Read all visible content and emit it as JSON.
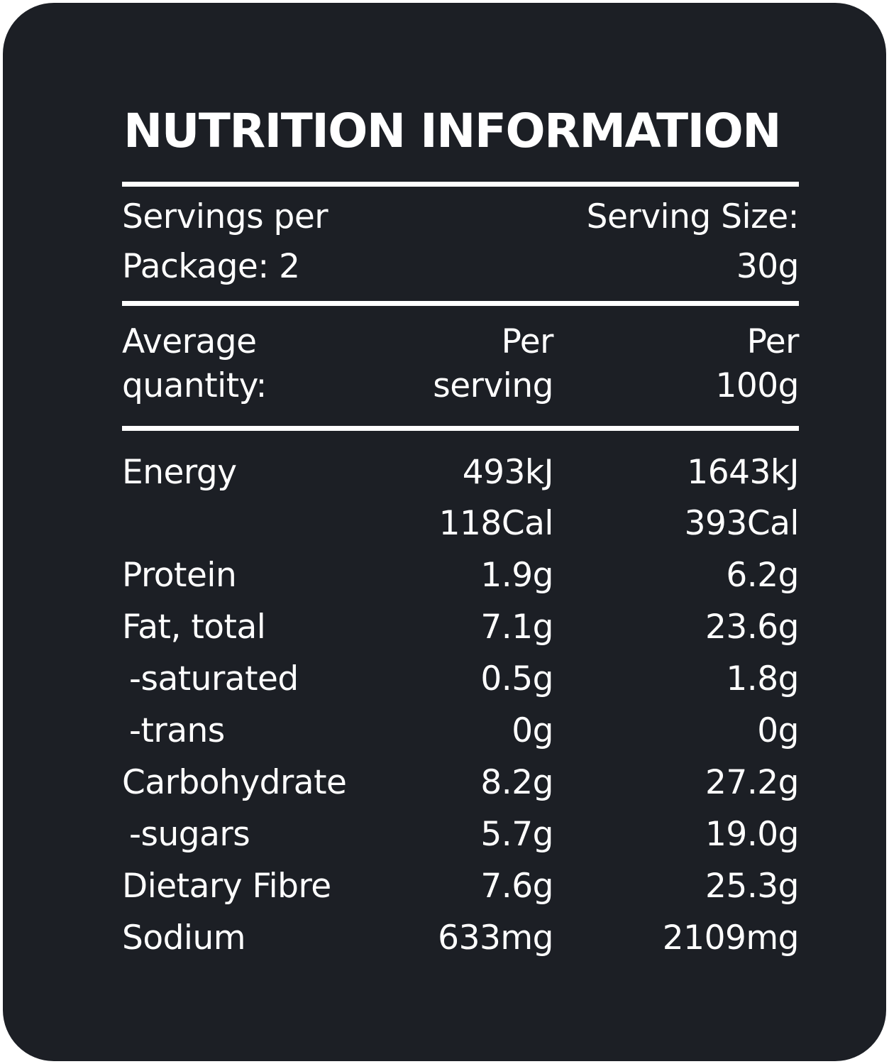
{
  "title": "NUTRITION INFORMATION",
  "servings": {
    "left_line1": "Servings per",
    "left_line2": "Package: 2",
    "right_line1": "Serving Size:",
    "right_line2": "30g"
  },
  "header": {
    "col1_line1": "Average",
    "col1_line2": "quantity:",
    "col2_line1": "Per",
    "col2_line2": "serving",
    "col3_line1": "Per",
    "col3_line2": "100g"
  },
  "rows": [
    {
      "name": "Energy",
      "per_serving": "493kJ",
      "per_100g": "1643kJ"
    },
    {
      "name": "",
      "per_serving": "118Cal",
      "per_100g": "393Cal"
    },
    {
      "name": "Protein",
      "per_serving": "1.9g",
      "per_100g": "6.2g"
    },
    {
      "name": "Fat, total",
      "per_serving": "7.1g",
      "per_100g": "23.6g"
    },
    {
      "name": "-saturated",
      "per_serving": "0.5g",
      "per_100g": "1.8g"
    },
    {
      "name": "-trans",
      "per_serving": "0g",
      "per_100g": "0g"
    },
    {
      "name": "Carbohydrate",
      "per_serving": "8.2g",
      "per_100g": "27.2g"
    },
    {
      "name": "-sugars",
      "per_serving": "5.7g",
      "per_100g": "19.0g"
    },
    {
      "name": "Dietary Fibre",
      "per_serving": "7.6g",
      "per_100g": "25.3g"
    },
    {
      "name": "Sodium",
      "per_serving": "633mg",
      "per_100g": "2109mg"
    }
  ]
}
